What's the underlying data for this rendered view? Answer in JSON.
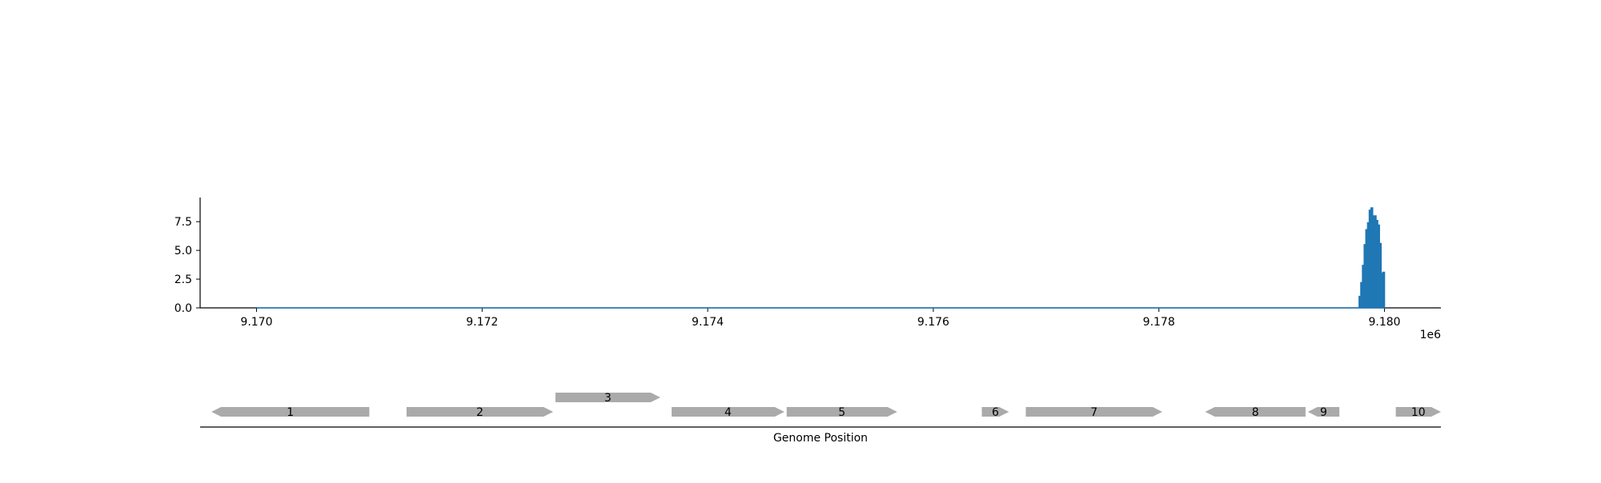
{
  "chart_data": [
    {
      "type": "area",
      "xlim": [
        9169500,
        9180500
      ],
      "ylim": [
        0,
        9.6
      ],
      "x_ticks": [
        9170000,
        9172000,
        9174000,
        9176000,
        9178000,
        9180000
      ],
      "x_tick_labels": [
        "9.170",
        "9.172",
        "9.174",
        "9.176",
        "9.178",
        "9.180"
      ],
      "x_offset_label": "1e6",
      "y_ticks": [
        0,
        2.5,
        5,
        7.5
      ],
      "y_tick_labels": [
        "0.0",
        "2.5",
        "5.0",
        "7.5"
      ],
      "series": [
        {
          "color": "#1f77b4",
          "x": [
            9170000,
            9179700,
            9179775,
            9179790,
            9179805,
            9179820,
            9179835,
            9179850,
            9179865,
            9179880,
            9179895,
            9179910,
            9179925,
            9179940,
            9179955,
            9179970,
            9179985,
            9180000
          ],
          "values": [
            0,
            0,
            1.0,
            2.2,
            3.7,
            5.5,
            6.8,
            7.4,
            8.5,
            8.7,
            8.0,
            8.0,
            7.6,
            7.2,
            5.6,
            3.0,
            3.1,
            0
          ]
        }
      ],
      "grid": false
    },
    {
      "type": "gene_track",
      "xlabel": "Genome Position",
      "genes": [
        {
          "label": "1",
          "start": 9169600,
          "end": 9171000,
          "strand": "-",
          "row": 0
        },
        {
          "label": "2",
          "start": 9171330,
          "end": 9172630,
          "strand": "+",
          "row": 0
        },
        {
          "label": "3",
          "start": 9172650,
          "end": 9173580,
          "strand": "+",
          "row": 1
        },
        {
          "label": "4",
          "start": 9173680,
          "end": 9174680,
          "strand": "+",
          "row": 0
        },
        {
          "label": "5",
          "start": 9174700,
          "end": 9175680,
          "strand": "+",
          "row": 0
        },
        {
          "label": "6",
          "start": 9176430,
          "end": 9176670,
          "strand": "+",
          "row": 0
        },
        {
          "label": "7",
          "start": 9176820,
          "end": 9178030,
          "strand": "+",
          "row": 0
        },
        {
          "label": "8",
          "start": 9178410,
          "end": 9179300,
          "strand": "-",
          "row": 0
        },
        {
          "label": "9",
          "start": 9179320,
          "end": 9179600,
          "strand": "-",
          "row": 0
        },
        {
          "label": "10",
          "start": 9180100,
          "end": 9180500,
          "strand": "+",
          "row": 0
        }
      ],
      "gene_color": "#aaaaaa"
    }
  ]
}
